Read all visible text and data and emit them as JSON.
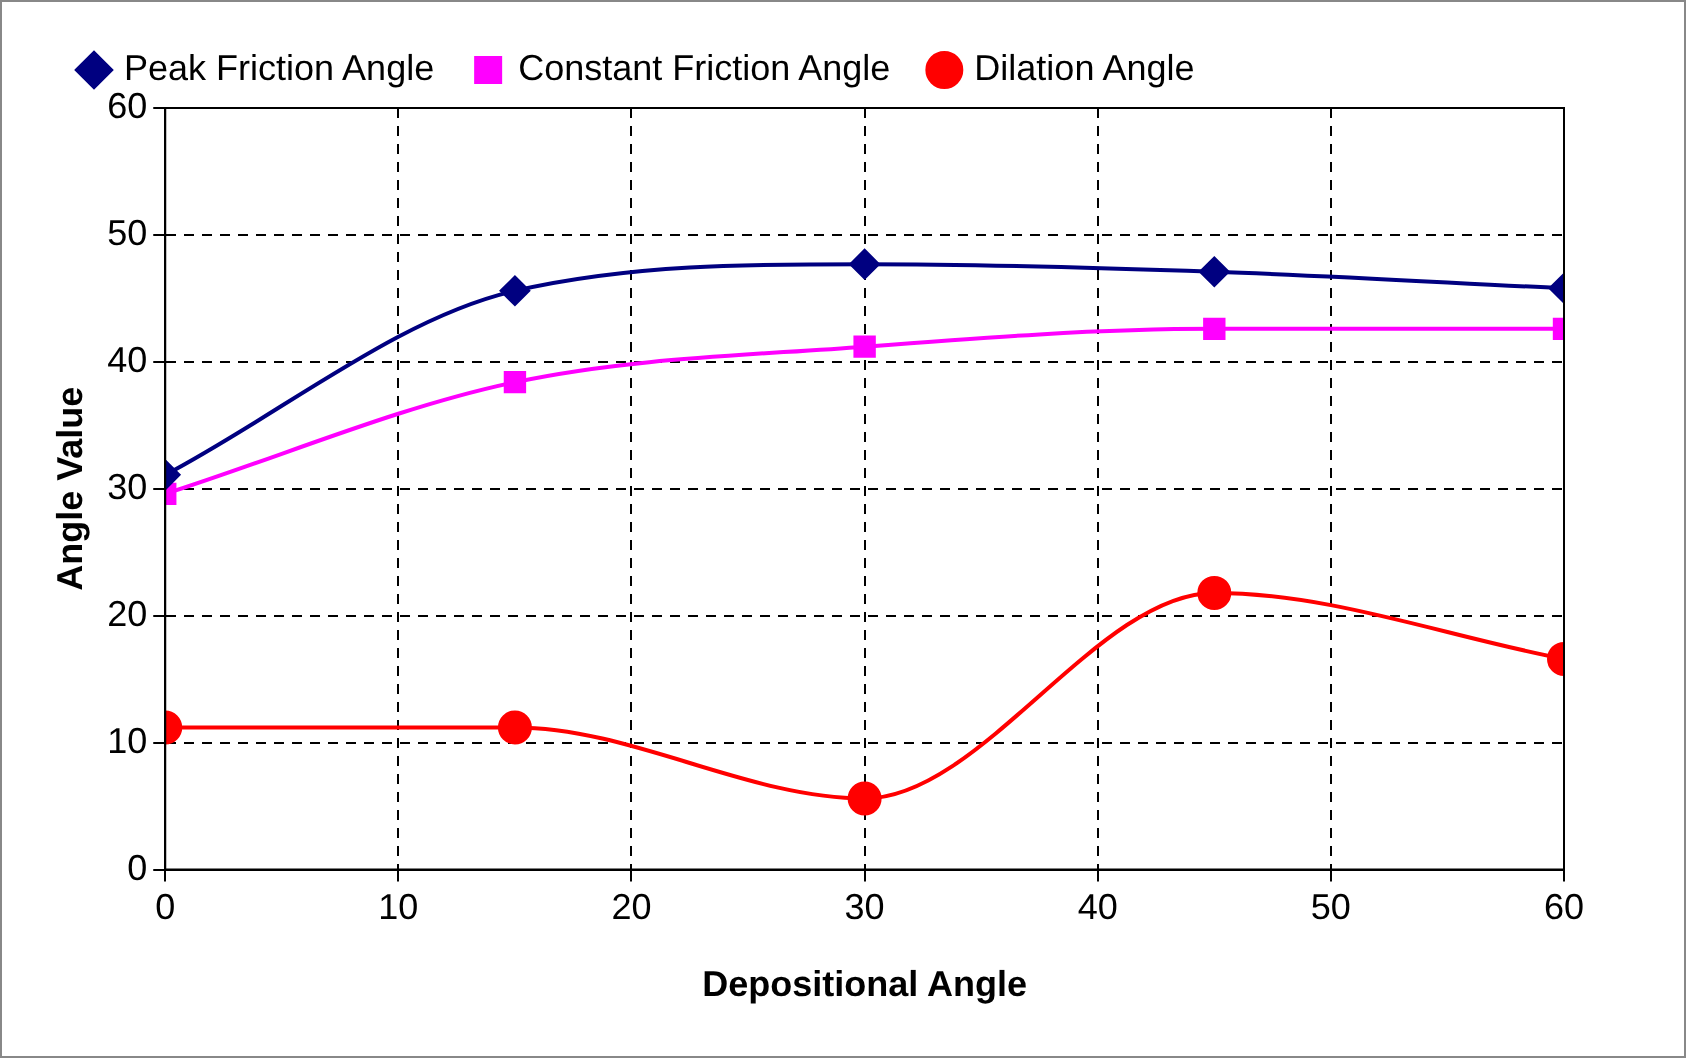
{
  "chart_data": {
    "type": "line",
    "xlabel": "Depositional Angle",
    "ylabel": "Angle Value",
    "x": [
      0,
      15,
      30,
      45,
      60
    ],
    "series": [
      {
        "name": "Peak Friction Angle",
        "color": "#000080",
        "marker": "diamond",
        "values": [
          31.1,
          45.6,
          47.7,
          47.1,
          45.8
        ]
      },
      {
        "name": "Constant Friction Angle",
        "color": "#ff00ff",
        "marker": "square",
        "values": [
          29.6,
          38.4,
          41.2,
          42.6,
          42.6
        ]
      },
      {
        "name": "Dilation Angle",
        "color": "#ff0000",
        "marker": "circle",
        "values": [
          11.2,
          11.2,
          5.6,
          21.8,
          16.6
        ]
      }
    ],
    "xlim": [
      0,
      60
    ],
    "xticks": [
      0,
      10,
      20,
      30,
      40,
      50,
      60
    ],
    "ylim": [
      0,
      60
    ],
    "yticks": [
      0,
      10,
      20,
      30,
      40,
      50,
      60
    ],
    "grid": true,
    "legend": "top",
    "line_style": "solid"
  }
}
